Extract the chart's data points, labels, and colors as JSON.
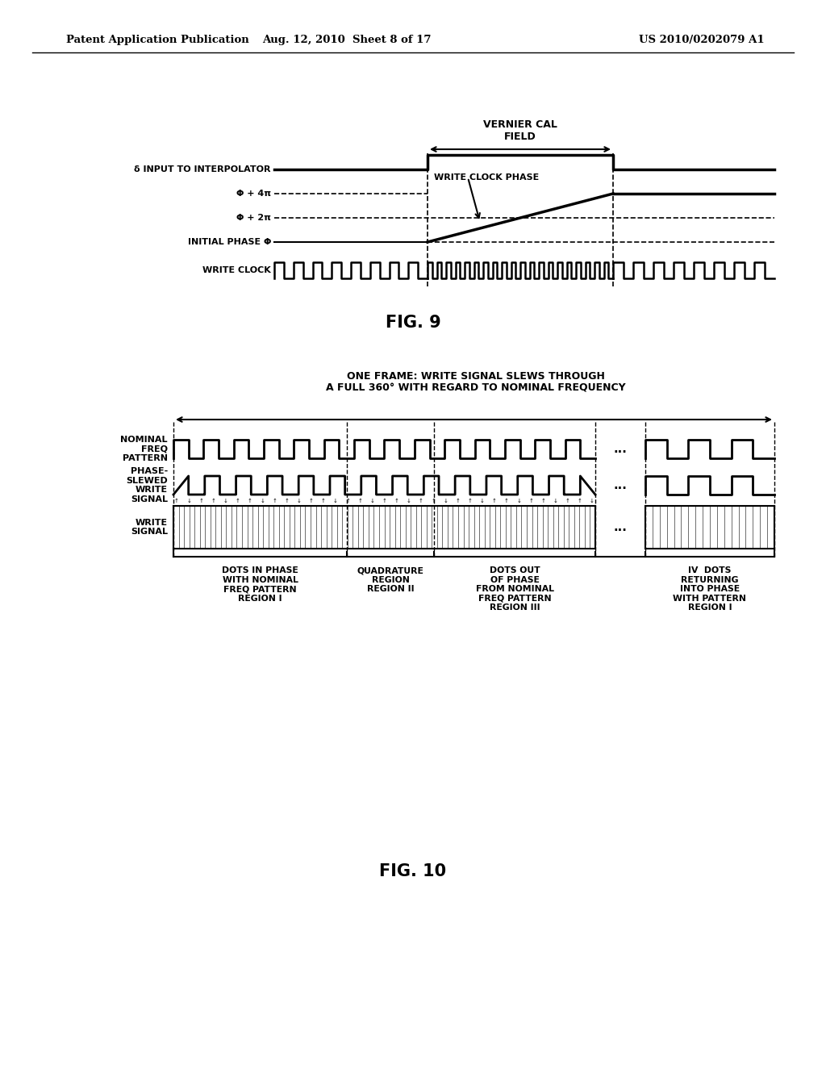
{
  "header_left": "Patent Application Publication",
  "header_mid": "Aug. 12, 2010  Sheet 8 of 17",
  "header_right": "US 2010/0202079 A1",
  "fig9_label": "FIG. 9",
  "fig10_label": "FIG. 10",
  "bg_color": "#ffffff",
  "line_color": "#000000",
  "fig9": {
    "vernier_label": "VERNIER CAL\nFIELD",
    "delta_label": "δ INPUT TO INTERPOLATOR",
    "write_clock_phase_label": "WRITE CLOCK PHASE",
    "phi_4pi_label": "Φ + 4π",
    "phi_2pi_label": "Φ + 2π",
    "initial_phase_label": "INITIAL PHASE Φ",
    "write_clock_label": "WRITE CLOCK"
  },
  "fig10": {
    "frame_label": "ONE FRAME: WRITE SIGNAL SLEWS THROUGH\nA FULL 360° WITH REGARD TO NOMINAL FREQUENCY",
    "nominal_label": "NOMINAL\nFREQ\nPATTERN",
    "phase_slewed_label": "PHASE-\nSLEWED\nWRITE\nSIGNAL",
    "write_signal_label": "WRITE\nSIGNAL",
    "region1_label": "DOTS IN PHASE\nWITH NOMINAL\nFREQ PATTERN\nREGION I",
    "region2_label": "QUADRATURE\nREGION\nREGION II",
    "region3_label": "DOTS OUT\nOF PHASE\nFROM NOMINAL\nFREQ PATTERN\nREGION III",
    "region4_label": "IV  DOTS\nRETURNING\nINTO PHASE\nWITH PATTERN\nREGION I"
  }
}
